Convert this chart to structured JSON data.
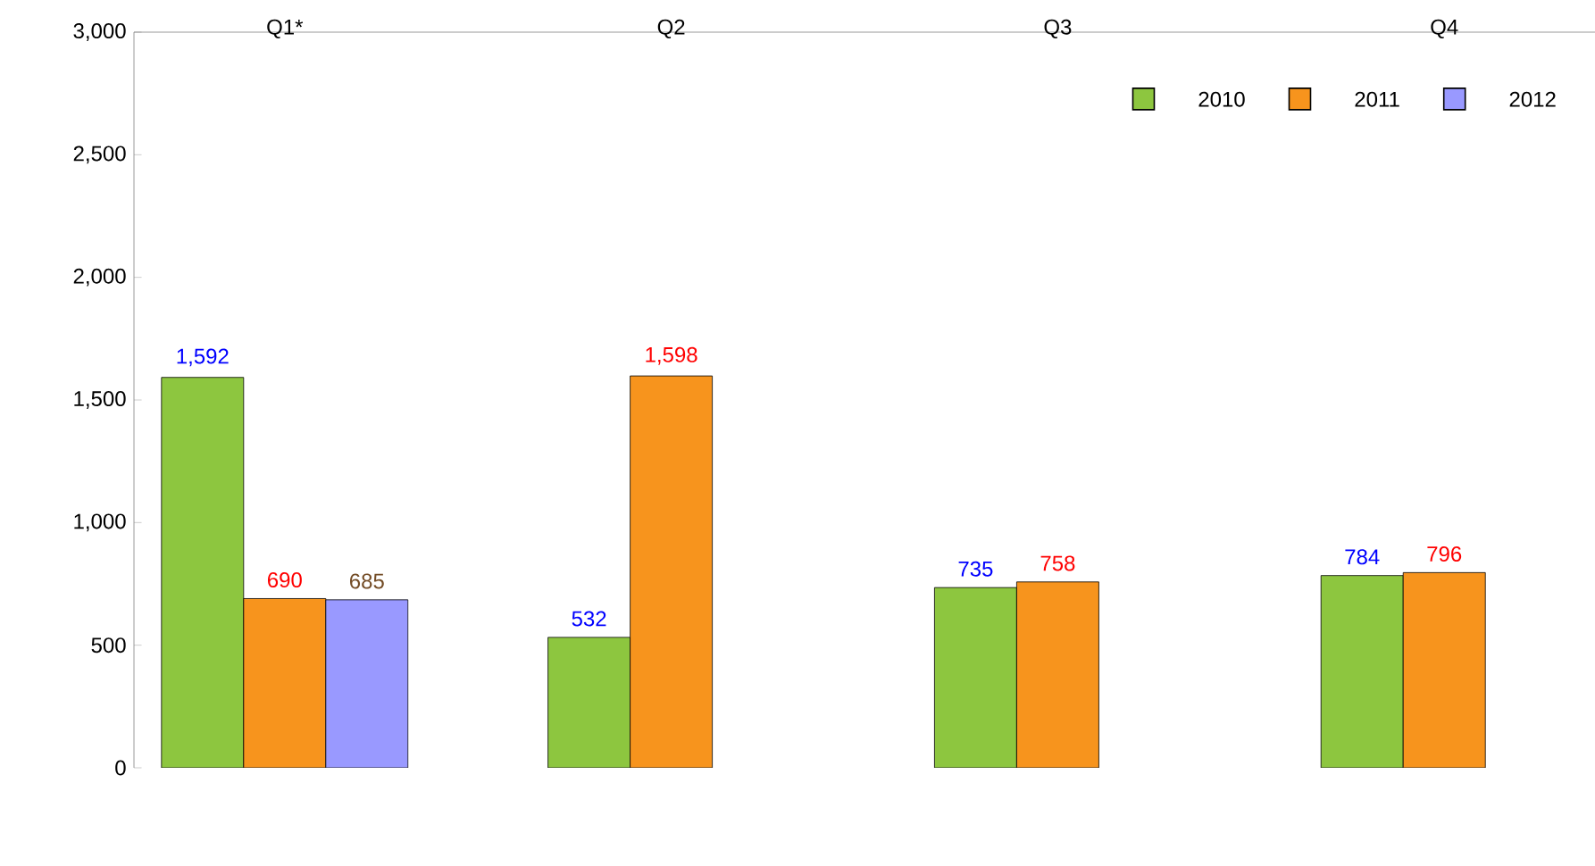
{
  "chart_data": {
    "type": "bar",
    "categories": [
      "Q1*",
      "Q2",
      "Q3",
      "Q4"
    ],
    "series": [
      {
        "name": "2010",
        "color": "#8dc63f",
        "values": [
          1592,
          532,
          735,
          784
        ],
        "value_labels": [
          "1,592",
          "532",
          "735",
          "784"
        ]
      },
      {
        "name": "2011",
        "color": "#f7941d",
        "values": [
          690,
          1598,
          758,
          796
        ],
        "value_labels": [
          "690",
          "1,598",
          "758",
          "796"
        ]
      },
      {
        "name": "2012",
        "color": "#9999ff",
        "values": [
          685,
          null,
          null,
          null
        ],
        "value_labels": [
          "685",
          null,
          null,
          null
        ]
      }
    ],
    "ylim": [
      0,
      3000
    ],
    "yticks": [
      0,
      500,
      {
        "value": 1000,
        "label": "1,000"
      },
      {
        "value": 1500,
        "label": "1,500"
      },
      {
        "value": 2000,
        "label": "2,000"
      },
      {
        "value": 2500,
        "label": "2,500"
      },
      {
        "value": 3000,
        "label": "3,000"
      }
    ],
    "grid": false,
    "legend": "top right"
  }
}
